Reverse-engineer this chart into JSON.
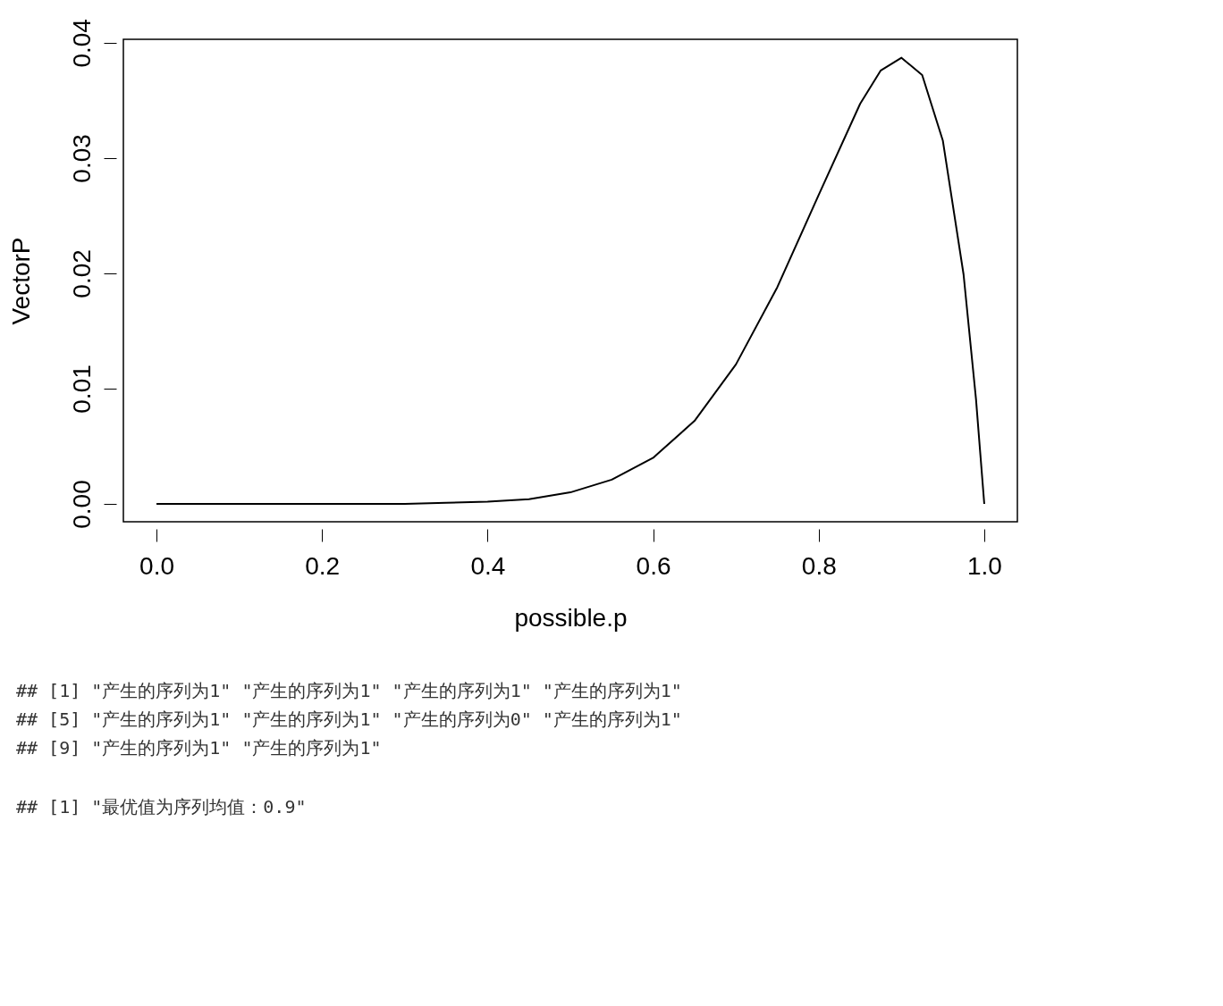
{
  "chart_data": {
    "type": "line",
    "xlabel": "possible.p",
    "ylabel": "VectorP",
    "x": [
      0,
      0.1,
      0.2,
      0.3,
      0.35,
      0.4,
      0.45,
      0.5,
      0.55,
      0.6,
      0.65,
      0.7,
      0.75,
      0.8,
      0.85,
      0.875,
      0.9,
      0.925,
      0.95,
      0.975,
      0.99,
      1.0
    ],
    "series": [
      {
        "color": "#000000",
        "values": [
          0,
          0,
          0,
          0,
          0.0001,
          0.0002,
          0.0004,
          0.001,
          0.0021,
          0.004,
          0.0072,
          0.0121,
          0.0188,
          0.0268,
          0.0347,
          0.0376,
          0.0387,
          0.0372,
          0.0315,
          0.0199,
          0.0091,
          0
        ]
      }
    ],
    "xlim": [
      -0.04,
      1.04
    ],
    "ylim": [
      -0.00155,
      0.0403
    ],
    "xticks": [
      {
        "value": 0,
        "label": "0.0"
      },
      0.2,
      0.4,
      0.6,
      0.8,
      {
        "value": 1,
        "label": "1.0"
      }
    ],
    "yticks": [
      {
        "value": 0,
        "label": "0.00"
      },
      0.01,
      0.02,
      0.03,
      0.04
    ],
    "grid": false,
    "legend": false,
    "marker": "none",
    "line_style": "solid",
    "annotations": [
      "##  [1] \"产生的序列为1\" \"产生的序列为1\" \"产生的序列为1\" \"产生的序列为1\"",
      "##  [5] \"产生的序列为1\" \"产生的序列为1\" \"产生的序列为0\" \"产生的序列为1\"",
      "##  [9] \"产生的序列为1\" \"产生的序列为1\"",
      "## [1] \"最优值为序列均值：0.9\""
    ]
  }
}
